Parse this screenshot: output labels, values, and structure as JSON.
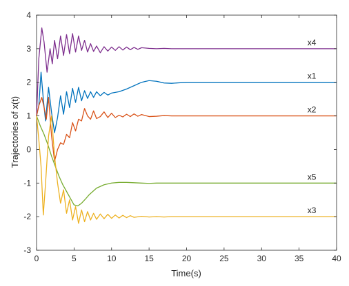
{
  "chart_data": {
    "type": "line",
    "xlabel": "Time(s)",
    "ylabel": "Trajectories of x(t)",
    "xlim": [
      0,
      40
    ],
    "ylim": [
      -3,
      4
    ],
    "xticks": [
      "0",
      "5",
      "10",
      "15",
      "20",
      "25",
      "30",
      "35",
      "40"
    ],
    "yticks": [
      "-3",
      "-2",
      "-1",
      "0",
      "1",
      "2",
      "3",
      "4"
    ],
    "grid": false,
    "series": [
      {
        "name": "x4",
        "color": "#7e2f8e",
        "x": [
          0,
          0.3,
          0.7,
          1.0,
          1.4,
          1.8,
          2.1,
          2.4,
          2.8,
          3.2,
          3.6,
          4.0,
          4.4,
          4.8,
          5.2,
          5.6,
          6.0,
          6.4,
          6.8,
          7.2,
          7.6,
          8.0,
          8.5,
          9.0,
          9.5,
          10.0,
          10.5,
          11.0,
          11.5,
          12.0,
          12.5,
          13.0,
          13.5,
          14.0,
          15.0,
          16.0,
          17.0,
          18.0,
          20.0,
          25.0,
          30.0,
          35.0,
          40.0
        ],
        "y": [
          1.0,
          2.7,
          3.62,
          3.2,
          2.3,
          3.0,
          2.55,
          3.25,
          2.7,
          3.38,
          2.8,
          3.42,
          2.85,
          3.45,
          2.9,
          3.38,
          2.95,
          3.25,
          2.9,
          3.15,
          2.92,
          3.08,
          2.88,
          3.06,
          2.93,
          3.05,
          2.95,
          3.06,
          2.96,
          3.05,
          2.97,
          3.04,
          2.98,
          3.03,
          3.01,
          3.0,
          3.01,
          3.0,
          3.0,
          3.0,
          3.0,
          3.0,
          3.0
        ]
      },
      {
        "name": "x1",
        "color": "#0072bd",
        "x": [
          0,
          0.3,
          0.6,
          0.9,
          1.2,
          1.6,
          2.0,
          2.4,
          2.8,
          3.2,
          3.6,
          4.0,
          4.4,
          4.8,
          5.2,
          5.6,
          6.0,
          6.4,
          6.8,
          7.2,
          7.6,
          8.0,
          8.5,
          9.0,
          9.5,
          10.0,
          11.0,
          12.0,
          13.0,
          14.0,
          15.0,
          16.0,
          17.0,
          18.0,
          20.0,
          25.0,
          30.0,
          35.0,
          40.0
        ],
        "y": [
          1.0,
          1.3,
          2.3,
          1.5,
          0.85,
          1.85,
          1.1,
          0.5,
          0.95,
          1.6,
          1.05,
          1.72,
          1.25,
          1.82,
          1.4,
          1.85,
          1.45,
          1.75,
          1.52,
          1.72,
          1.55,
          1.72,
          1.6,
          1.7,
          1.62,
          1.68,
          1.72,
          1.8,
          1.9,
          2.0,
          2.05,
          2.03,
          1.98,
          1.97,
          2.0,
          2.0,
          2.0,
          2.0,
          2.0
        ]
      },
      {
        "name": "x2",
        "color": "#d95319",
        "x": [
          0,
          0.3,
          0.7,
          1.0,
          1.3,
          1.6,
          2.0,
          2.4,
          2.8,
          3.2,
          3.6,
          4.0,
          4.4,
          4.8,
          5.2,
          5.6,
          6.0,
          6.4,
          6.8,
          7.2,
          7.6,
          8.0,
          8.5,
          9.0,
          9.5,
          10.0,
          10.5,
          11.0,
          11.5,
          12.0,
          12.5,
          13.0,
          13.5,
          14.0,
          15.0,
          16.0,
          17.0,
          18.0,
          20.0,
          25.0,
          30.0,
          35.0,
          40.0
        ],
        "y": [
          1.0,
          1.3,
          1.55,
          1.25,
          0.9,
          1.55,
          0.4,
          -0.35,
          0.0,
          0.2,
          0.15,
          0.45,
          0.35,
          0.8,
          0.55,
          0.9,
          0.85,
          1.22,
          1.0,
          0.9,
          1.15,
          0.92,
          0.98,
          1.12,
          0.95,
          1.08,
          0.95,
          1.02,
          0.97,
          1.05,
          0.98,
          1.06,
          0.99,
          1.04,
          0.98,
          0.99,
          1.01,
          1.0,
          1.0,
          1.0,
          1.0,
          1.0,
          1.0
        ]
      },
      {
        "name": "x5",
        "color": "#77ac30",
        "x": [
          0,
          0.5,
          1.0,
          1.5,
          2.0,
          2.5,
          3.0,
          3.5,
          4.0,
          4.5,
          5.0,
          5.5,
          6.0,
          6.5,
          7.0,
          7.5,
          8.0,
          9.0,
          10.0,
          11.0,
          12.0,
          13.0,
          14.0,
          15.0,
          16.0,
          18.0,
          20.0,
          25.0,
          30.0,
          35.0,
          40.0
        ],
        "y": [
          1.0,
          0.7,
          0.45,
          0.15,
          -0.2,
          -0.5,
          -0.8,
          -1.05,
          -1.25,
          -1.45,
          -1.65,
          -1.68,
          -1.6,
          -1.48,
          -1.35,
          -1.25,
          -1.15,
          -1.05,
          -1.0,
          -0.98,
          -0.98,
          -0.99,
          -1.0,
          -1.01,
          -1.0,
          -1.0,
          -1.0,
          -1.0,
          -1.0,
          -1.0,
          -1.0
        ]
      },
      {
        "name": "x3",
        "color": "#edb120",
        "x": [
          0,
          0.3,
          0.6,
          0.9,
          1.2,
          1.6,
          2.0,
          2.4,
          2.8,
          3.2,
          3.6,
          4.0,
          4.4,
          4.8,
          5.2,
          5.6,
          6.0,
          6.4,
          6.8,
          7.2,
          7.6,
          8.0,
          8.5,
          9.0,
          9.5,
          10.0,
          10.5,
          11.0,
          11.5,
          12.0,
          12.5,
          13.0,
          14.0,
          15.0,
          16.0,
          17.0,
          18.0,
          20.0,
          25.0,
          30.0,
          35.0,
          40.0
        ],
        "y": [
          1.0,
          0.3,
          -0.5,
          -1.95,
          -1.0,
          0.4,
          1.0,
          -0.2,
          -1.0,
          -1.6,
          -1.2,
          -1.9,
          -1.5,
          -2.1,
          -1.7,
          -2.2,
          -1.8,
          -2.15,
          -1.85,
          -2.1,
          -1.9,
          -2.08,
          -1.92,
          -2.06,
          -1.93,
          -2.05,
          -1.95,
          -2.04,
          -1.96,
          -2.03,
          -1.97,
          -2.02,
          -1.99,
          -2.01,
          -2.0,
          -2.01,
          -2.0,
          -2.0,
          -2.0,
          -2.0,
          -2.0,
          -2.0
        ]
      }
    ]
  }
}
